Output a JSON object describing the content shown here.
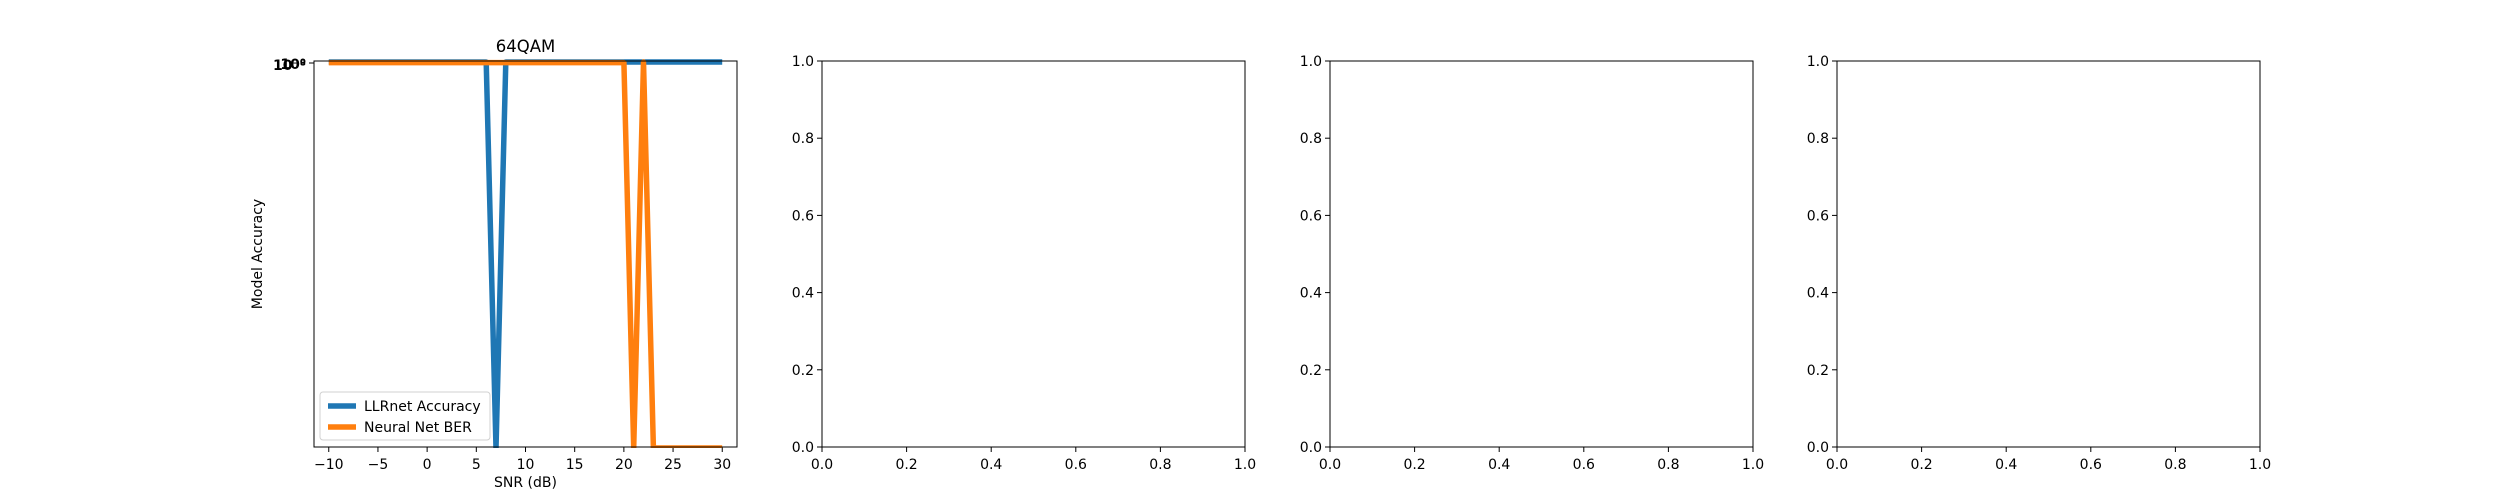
{
  "chart_data": [
    {
      "type": "line",
      "title": "64QAM",
      "xlabel": "SNR (dB)",
      "ylabel": "Model Accuracy",
      "xlim": [
        -11.5,
        31.5
      ],
      "yscale": "log",
      "x_ticks": [
        "−10",
        "−5",
        "0",
        "5",
        "10",
        "15",
        "20",
        "25",
        "30"
      ],
      "x_tick_values": [
        -10,
        -5,
        0,
        5,
        10,
        15,
        20,
        25,
        30
      ],
      "y_tick_labels": [
        "10⁰",
        "10⁻⁸"
      ],
      "legend_position": "lower-left",
      "grid": false,
      "series": [
        {
          "name": "LLRnet Accuracy",
          "color": "#1f77b4",
          "x": [
            -10,
            -8,
            -6,
            -4,
            -2,
            0,
            2,
            4,
            6,
            7,
            8,
            10,
            12,
            14,
            16,
            18,
            20,
            22,
            24,
            26,
            28,
            30
          ],
          "y": [
            1,
            1,
            1,
            1,
            1,
            1,
            1,
            1,
            1,
            0,
            1,
            1,
            1,
            1,
            1,
            1,
            1,
            1,
            1,
            1,
            1,
            1
          ]
        },
        {
          "name": "Neural Net BER",
          "color": "#ff7f0e",
          "x": [
            -10,
            -8,
            -6,
            -4,
            -2,
            0,
            2,
            4,
            6,
            8,
            10,
            12,
            14,
            16,
            18,
            20,
            21,
            22,
            23,
            24,
            26,
            28,
            30
          ],
          "y": [
            0.99,
            0.99,
            0.99,
            0.99,
            0.99,
            0.99,
            0.99,
            0.99,
            0.99,
            0.99,
            0.99,
            0.99,
            0.99,
            0.99,
            0.99,
            0.99,
            0,
            1,
            0,
            0,
            0,
            0,
            0
          ]
        }
      ]
    },
    {
      "type": "line",
      "title": "",
      "xlim": [
        0,
        1
      ],
      "ylim": [
        0,
        1
      ],
      "x_ticks": [
        "0.0",
        "0.2",
        "0.4",
        "0.6",
        "0.8",
        "1.0"
      ],
      "y_ticks": [
        "0.0",
        "0.2",
        "0.4",
        "0.6",
        "0.8",
        "1.0"
      ],
      "series": []
    },
    {
      "type": "line",
      "title": "",
      "xlim": [
        0,
        1
      ],
      "ylim": [
        0,
        1
      ],
      "x_ticks": [
        "0.0",
        "0.2",
        "0.4",
        "0.6",
        "0.8",
        "1.0"
      ],
      "y_ticks": [
        "0.0",
        "0.2",
        "0.4",
        "0.6",
        "0.8",
        "1.0"
      ],
      "series": []
    },
    {
      "type": "line",
      "title": "",
      "xlim": [
        0,
        1
      ],
      "ylim": [
        0,
        1
      ],
      "x_ticks": [
        "0.0",
        "0.2",
        "0.4",
        "0.6",
        "0.8",
        "1.0"
      ],
      "y_ticks": [
        "0.0",
        "0.2",
        "0.4",
        "0.6",
        "0.8",
        "1.0"
      ],
      "series": []
    }
  ]
}
